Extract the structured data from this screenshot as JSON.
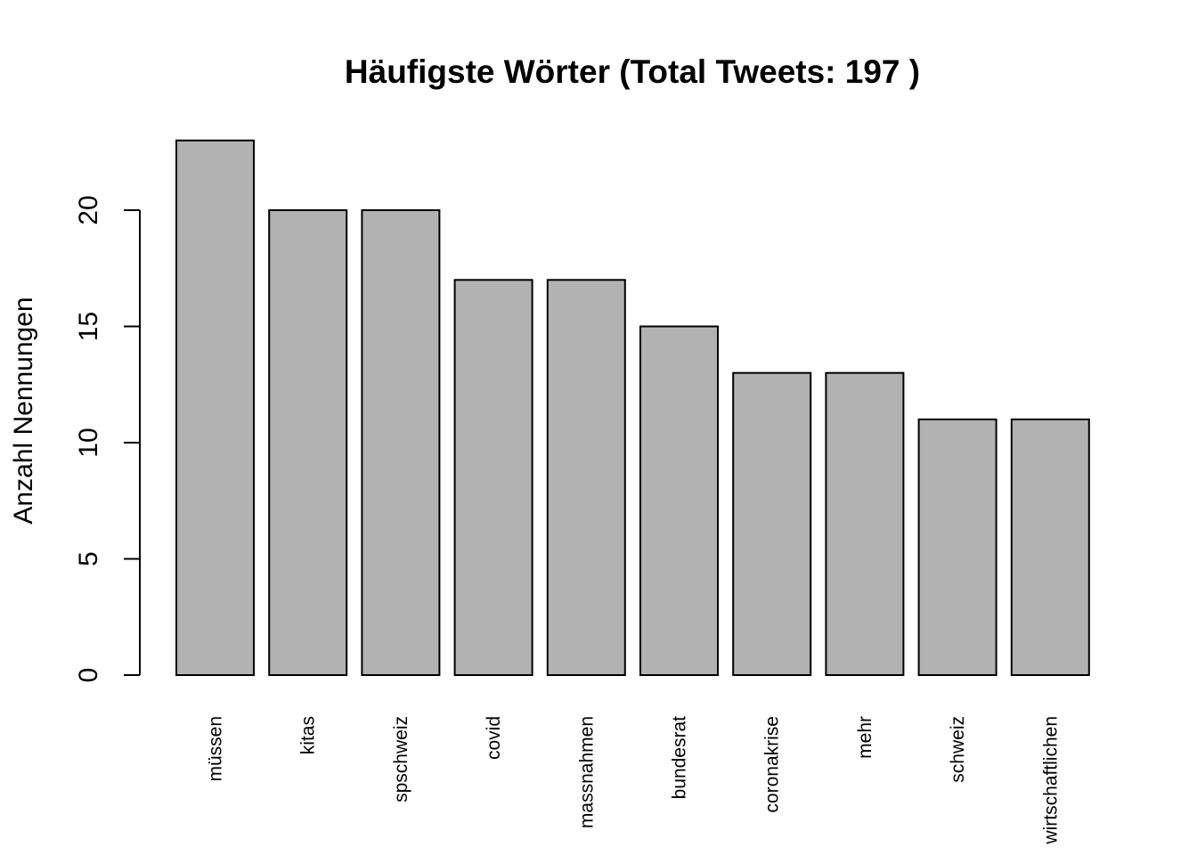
{
  "chart_data": {
    "type": "bar",
    "title": "Häufigste Wörter (Total Tweets:  197 )",
    "xlabel": "",
    "ylabel": "Anzahl Nennungen",
    "categories": [
      "müssen",
      "kitas",
      "spschweiz",
      "covid",
      "massnahmen",
      "bundesrat",
      "coronakrise",
      "mehr",
      "schweiz",
      "wirtschaftlichen"
    ],
    "values": [
      23,
      20,
      20,
      17,
      17,
      15,
      13,
      13,
      11,
      11
    ],
    "yticks": [
      0,
      5,
      10,
      15,
      20
    ],
    "ylim": [
      0,
      23
    ],
    "bar_color": "#b2b2b2",
    "grid": false,
    "legend": "none"
  }
}
